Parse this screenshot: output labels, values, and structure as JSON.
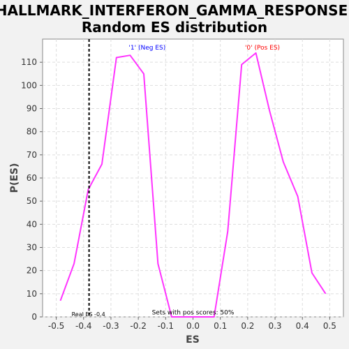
{
  "chart_data": {
    "type": "line",
    "title_line1": "HALLMARK_INTERFERON_GAMMA_RESPONSE:",
    "title_line2": "Random ES distribution",
    "xlabel": "ES",
    "ylabel": "P(ES)",
    "xlim": [
      -0.55,
      0.55
    ],
    "ylim": [
      0,
      120
    ],
    "x_ticks": [
      -0.5,
      -0.4,
      -0.3,
      -0.2,
      -0.1,
      0.0,
      0.1,
      0.2,
      0.3,
      0.4,
      0.5
    ],
    "x_tick_labels": [
      "-0.5",
      "-0.4",
      "-0.3",
      "-0.2",
      "-0.1",
      "0.0",
      "0.1",
      "0.2",
      "0.3",
      "0.4",
      "0.5"
    ],
    "y_ticks": [
      0,
      10,
      20,
      30,
      40,
      50,
      60,
      70,
      80,
      90,
      100,
      110
    ],
    "y_tick_labels": [
      "0",
      "10",
      "20",
      "30",
      "40",
      "50",
      "60",
      "70",
      "80",
      "90",
      "100",
      "110"
    ],
    "grid": true,
    "series": [
      {
        "color": "#ff33ff",
        "x": [
          -0.485,
          -0.435,
          -0.383,
          -0.333,
          -0.28,
          -0.23,
          -0.18,
          -0.128,
          -0.078,
          -0.025,
          0.025,
          0.077,
          0.127,
          0.178,
          0.23,
          0.28,
          0.33,
          0.383,
          0.435,
          0.485
        ],
        "y": [
          7,
          23,
          55,
          66,
          112,
          113,
          105,
          23,
          0,
          0,
          0,
          0,
          37,
          109,
          114,
          89,
          67,
          52,
          19,
          10
        ]
      }
    ],
    "real_es": {
      "x": -0.38,
      "label": "Real ES -0.4",
      "color": "#000000"
    },
    "annotations": [
      {
        "text": "'1' (Neg ES)",
        "x": -0.235,
        "y": 115.5,
        "color": "#0000ff"
      },
      {
        "text": "'0' (Pos ES)",
        "x": 0.19,
        "y": 115.5,
        "color": "#ff0000"
      },
      {
        "text": "Sets with pos scores: 50%",
        "x": 0.0,
        "y": 1,
        "color": "#000000"
      }
    ]
  }
}
